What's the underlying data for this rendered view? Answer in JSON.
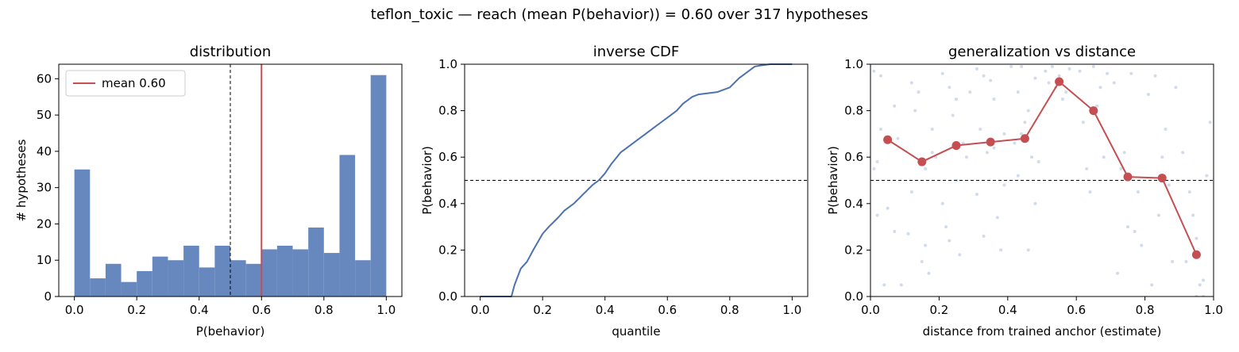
{
  "figure": {
    "suptitle": "teflon_toxic  —  reach (mean P(behavior)) = 0.60  over 317 hypotheses"
  },
  "chart_data": [
    {
      "type": "bar",
      "title": "distribution",
      "xlabel": "P(behavior)",
      "ylabel": "# hypotheses",
      "xlim": [
        -0.05,
        1.05
      ],
      "ylim": [
        0,
        64
      ],
      "xticks": [
        0.0,
        0.2,
        0.4,
        0.6,
        0.8,
        1.0
      ],
      "xtick_labels": [
        "0.0",
        "0.2",
        "0.4",
        "0.6",
        "0.8",
        "1.0"
      ],
      "yticks": [
        0,
        10,
        20,
        30,
        40,
        50,
        60
      ],
      "ytick_labels": [
        "0",
        "10",
        "20",
        "30",
        "40",
        "50",
        "60"
      ],
      "bin_edges": [
        0.0,
        0.05,
        0.1,
        0.15,
        0.2,
        0.25,
        0.3,
        0.35,
        0.4,
        0.45,
        0.5,
        0.55,
        0.6,
        0.65,
        0.7,
        0.75,
        0.8,
        0.85,
        0.9,
        0.95,
        1.0
      ],
      "values": [
        35,
        5,
        9,
        4,
        7,
        11,
        10,
        14,
        8,
        14,
        10,
        9,
        13,
        14,
        13,
        19,
        12,
        39,
        10,
        61
      ],
      "bar_color": "#6788bf",
      "threshold_line": 0.5,
      "mean_line": 0.6,
      "mean_color": "#c44e52",
      "legend": {
        "label": "mean 0.60",
        "position": "upper-left"
      }
    },
    {
      "type": "line",
      "title": "inverse CDF",
      "xlabel": "quantile",
      "ylabel": "P(behavior)",
      "xlim": [
        -0.05,
        1.05
      ],
      "ylim": [
        0,
        1
      ],
      "xticks": [
        0.0,
        0.2,
        0.4,
        0.6,
        0.8,
        1.0
      ],
      "xtick_labels": [
        "0.0",
        "0.2",
        "0.4",
        "0.6",
        "0.8",
        "1.0"
      ],
      "yticks": [
        0.0,
        0.2,
        0.4,
        0.6,
        0.8,
        1.0
      ],
      "ytick_labels": [
        "0.0",
        "0.2",
        "0.4",
        "0.6",
        "0.8",
        "1.0"
      ],
      "x": [
        0.0,
        0.1,
        0.11,
        0.13,
        0.15,
        0.17,
        0.2,
        0.22,
        0.25,
        0.27,
        0.3,
        0.33,
        0.36,
        0.38,
        0.4,
        0.42,
        0.45,
        0.48,
        0.5,
        0.53,
        0.56,
        0.58,
        0.6,
        0.63,
        0.65,
        0.68,
        0.7,
        0.73,
        0.76,
        0.78,
        0.8,
        0.83,
        0.86,
        0.88,
        0.9,
        0.93,
        1.0
      ],
      "y": [
        0.0,
        0.0,
        0.05,
        0.12,
        0.15,
        0.2,
        0.27,
        0.3,
        0.34,
        0.37,
        0.4,
        0.44,
        0.48,
        0.5,
        0.53,
        0.57,
        0.62,
        0.65,
        0.67,
        0.7,
        0.73,
        0.75,
        0.77,
        0.8,
        0.83,
        0.86,
        0.87,
        0.875,
        0.88,
        0.89,
        0.9,
        0.94,
        0.97,
        0.99,
        0.995,
        1.0,
        1.0
      ],
      "line_color": "#4c72b0",
      "threshold_line": 0.5
    },
    {
      "type": "scatter",
      "title": "generalization vs distance",
      "xlabel": "distance from trained anchor (estimate)",
      "ylabel": "P(behavior)",
      "xlim": [
        0,
        1
      ],
      "ylim": [
        0,
        1
      ],
      "xticks": [
        0.0,
        0.2,
        0.4,
        0.6,
        0.8,
        1.0
      ],
      "xtick_labels": [
        "0.0",
        "0.2",
        "0.4",
        "0.6",
        "0.8",
        "1.0"
      ],
      "yticks": [
        0.0,
        0.2,
        0.4,
        0.6,
        0.8,
        1.0
      ],
      "ytick_labels": [
        "0.0",
        "0.2",
        "0.4",
        "0.6",
        "0.8",
        "1.0"
      ],
      "binned_x": [
        0.05,
        0.15,
        0.25,
        0.35,
        0.45,
        0.55,
        0.65,
        0.75,
        0.85,
        0.95
      ],
      "binned_y": [
        0.675,
        0.58,
        0.65,
        0.665,
        0.68,
        0.925,
        0.8,
        0.515,
        0.51,
        0.18
      ],
      "binned_color": "#c44e52",
      "scatter_color": "#b0c4de",
      "scatter_points": [
        [
          0.01,
          0.97
        ],
        [
          0.03,
          0.95
        ],
        [
          0.07,
          0.82
        ],
        [
          0.02,
          0.58
        ],
        [
          0.01,
          0.55
        ],
        [
          0.05,
          0.38
        ],
        [
          0.02,
          0.35
        ],
        [
          0.09,
          0.05
        ],
        [
          0.07,
          0.28
        ],
        [
          0.04,
          0.05
        ],
        [
          0.08,
          0.68
        ],
        [
          0.03,
          0.72
        ],
        [
          0.11,
          0.27
        ],
        [
          0.12,
          0.92
        ],
        [
          0.14,
          0.88
        ],
        [
          0.13,
          0.8
        ],
        [
          0.16,
          0.55
        ],
        [
          0.18,
          0.62
        ],
        [
          0.15,
          0.15
        ],
        [
          0.17,
          0.1
        ],
        [
          0.19,
          0.6
        ],
        [
          0.12,
          0.45
        ],
        [
          0.16,
          0.22
        ],
        [
          0.18,
          0.72
        ],
        [
          0.21,
          0.96
        ],
        [
          0.23,
          0.9
        ],
        [
          0.25,
          0.85
        ],
        [
          0.24,
          0.78
        ],
        [
          0.22,
          0.3
        ],
        [
          0.26,
          0.18
        ],
        [
          0.28,
          0.6
        ],
        [
          0.27,
          0.66
        ],
        [
          0.21,
          0.4
        ],
        [
          0.29,
          0.88
        ],
        [
          0.23,
          0.24
        ],
        [
          0.25,
          0.5
        ],
        [
          0.31,
          0.98
        ],
        [
          0.33,
          0.95
        ],
        [
          0.35,
          0.93
        ],
        [
          0.32,
          0.72
        ],
        [
          0.34,
          0.62
        ],
        [
          0.36,
          0.64
        ],
        [
          0.38,
          0.2
        ],
        [
          0.37,
          0.34
        ],
        [
          0.39,
          0.7
        ],
        [
          0.31,
          0.44
        ],
        [
          0.33,
          0.26
        ],
        [
          0.36,
          0.85
        ],
        [
          0.39,
          0.48
        ],
        [
          0.41,
          0.99
        ],
        [
          0.43,
          0.88
        ],
        [
          0.45,
          0.75
        ],
        [
          0.44,
          0.7
        ],
        [
          0.46,
          0.8
        ],
        [
          0.48,
          0.94
        ],
        [
          0.42,
          0.66
        ],
        [
          0.47,
          0.6
        ],
        [
          0.49,
          0.58
        ],
        [
          0.44,
          0.99
        ],
        [
          0.46,
          0.2
        ],
        [
          0.43,
          0.52
        ],
        [
          0.48,
          0.4
        ],
        [
          0.51,
          0.97
        ],
        [
          0.53,
          0.99
        ],
        [
          0.55,
          0.95
        ],
        [
          0.57,
          0.88
        ],
        [
          0.52,
          0.92
        ],
        [
          0.58,
          0.98
        ],
        [
          0.56,
          0.85
        ],
        [
          0.54,
          0.9
        ],
        [
          0.61,
          0.97
        ],
        [
          0.63,
          0.55
        ],
        [
          0.65,
          0.99
        ],
        [
          0.67,
          0.9
        ],
        [
          0.62,
          0.75
        ],
        [
          0.68,
          0.6
        ],
        [
          0.64,
          0.45
        ],
        [
          0.66,
          0.82
        ],
        [
          0.69,
          0.96
        ],
        [
          0.71,
          0.92
        ],
        [
          0.73,
          0.55
        ],
        [
          0.75,
          0.3
        ],
        [
          0.77,
          0.28
        ],
        [
          0.72,
          0.1
        ],
        [
          0.78,
          0.45
        ],
        [
          0.74,
          0.62
        ],
        [
          0.76,
          0.96
        ],
        [
          0.79,
          0.22
        ],
        [
          0.81,
          0.87
        ],
        [
          0.83,
          0.95
        ],
        [
          0.85,
          0.6
        ],
        [
          0.87,
          0.48
        ],
        [
          0.82,
          0.05
        ],
        [
          0.88,
          0.15
        ],
        [
          0.84,
          0.35
        ],
        [
          0.86,
          0.72
        ],
        [
          0.89,
          0.9
        ],
        [
          0.91,
          0.62
        ],
        [
          0.93,
          0.45
        ],
        [
          0.95,
          0.25
        ],
        [
          0.97,
          0.07
        ],
        [
          0.92,
          0.15
        ],
        [
          0.98,
          0.52
        ],
        [
          0.94,
          0.35
        ],
        [
          0.96,
          0.05
        ],
        [
          0.99,
          0.75
        ],
        [
          0.97,
          0.0
        ],
        [
          0.95,
          0.0
        ]
      ],
      "threshold_line": 0.5
    }
  ]
}
